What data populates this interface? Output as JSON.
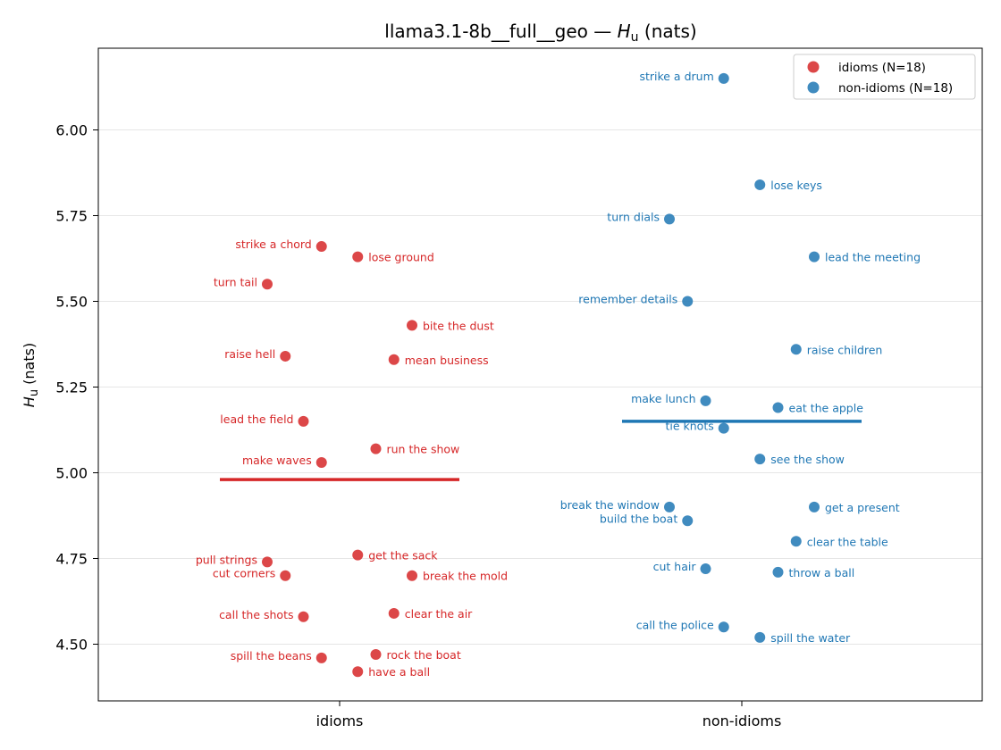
{
  "chart_data": {
    "type": "scatter",
    "title_text": "llama3.1-8b__full__geo — ",
    "title_var": "H",
    "title_sub": "u",
    "title_unit": " (nats)",
    "ylabel_var": "H",
    "ylabel_sub": "u",
    "ylabel_unit": " (nats)",
    "categories": [
      "idioms",
      "non-idioms"
    ],
    "ylim": [
      4.34,
      6.25
    ],
    "yticks": [
      4.5,
      4.75,
      5.0,
      5.25,
      5.5,
      5.75,
      6.0
    ],
    "ytick_labels": [
      "4.50",
      "4.75",
      "5.00",
      "5.25",
      "5.50",
      "5.75",
      "6.00"
    ],
    "grid": "horizontal",
    "legend_position": "top-right",
    "series": [
      {
        "name": "idioms (N=18)",
        "category": "idioms",
        "color": "#d62728",
        "mean": 4.98,
        "points": [
          {
            "label": "strike a chord",
            "y": 5.66,
            "jitter": -0.05
          },
          {
            "label": "lose ground",
            "y": 5.63,
            "jitter": 0.05
          },
          {
            "label": "turn tail",
            "y": 5.55,
            "jitter": -0.2
          },
          {
            "label": "bite the dust",
            "y": 5.43,
            "jitter": 0.2
          },
          {
            "label": "raise hell",
            "y": 5.34,
            "jitter": -0.15
          },
          {
            "label": "mean business",
            "y": 5.33,
            "jitter": 0.15
          },
          {
            "label": "lead the field",
            "y": 5.15,
            "jitter": -0.1
          },
          {
            "label": "run the show",
            "y": 5.07,
            "jitter": 0.1
          },
          {
            "label": "make waves",
            "y": 5.03,
            "jitter": -0.05
          },
          {
            "label": "get the sack",
            "y": 4.76,
            "jitter": 0.05
          },
          {
            "label": "pull strings",
            "y": 4.74,
            "jitter": -0.2
          },
          {
            "label": "cut corners",
            "y": 4.7,
            "jitter": -0.15
          },
          {
            "label": "break the mold",
            "y": 4.7,
            "jitter": 0.2
          },
          {
            "label": "clear the air",
            "y": 4.59,
            "jitter": 0.15
          },
          {
            "label": "call the shots",
            "y": 4.58,
            "jitter": -0.1
          },
          {
            "label": "rock the boat",
            "y": 4.47,
            "jitter": 0.1
          },
          {
            "label": "spill the beans",
            "y": 4.46,
            "jitter": -0.05
          },
          {
            "label": "have a ball",
            "y": 4.42,
            "jitter": 0.05
          }
        ]
      },
      {
        "name": "non-idioms (N=18)",
        "category": "non-idioms",
        "color": "#1f77b4",
        "mean": 5.15,
        "points": [
          {
            "label": "strike a drum",
            "y": 6.15,
            "jitter": -0.05
          },
          {
            "label": "lose keys",
            "y": 5.84,
            "jitter": 0.05
          },
          {
            "label": "turn dials",
            "y": 5.74,
            "jitter": -0.2
          },
          {
            "label": "lead the meeting",
            "y": 5.63,
            "jitter": 0.2
          },
          {
            "label": "remember details",
            "y": 5.5,
            "jitter": -0.15
          },
          {
            "label": "raise children",
            "y": 5.36,
            "jitter": 0.15
          },
          {
            "label": "make lunch",
            "y": 5.21,
            "jitter": -0.1
          },
          {
            "label": "eat the apple",
            "y": 5.19,
            "jitter": 0.1
          },
          {
            "label": "tie knots",
            "y": 5.13,
            "jitter": -0.05
          },
          {
            "label": "see the show",
            "y": 5.04,
            "jitter": 0.05
          },
          {
            "label": "break the window",
            "y": 4.9,
            "jitter": -0.2
          },
          {
            "label": "get a present",
            "y": 4.9,
            "jitter": 0.2
          },
          {
            "label": "build the boat",
            "y": 4.86,
            "jitter": -0.15
          },
          {
            "label": "clear the table",
            "y": 4.8,
            "jitter": 0.15
          },
          {
            "label": "cut hair",
            "y": 4.72,
            "jitter": -0.1
          },
          {
            "label": "throw a ball",
            "y": 4.71,
            "jitter": 0.1
          },
          {
            "label": "call the police",
            "y": 4.55,
            "jitter": -0.05
          },
          {
            "label": "spill the water",
            "y": 4.52,
            "jitter": 0.05
          }
        ]
      }
    ]
  }
}
